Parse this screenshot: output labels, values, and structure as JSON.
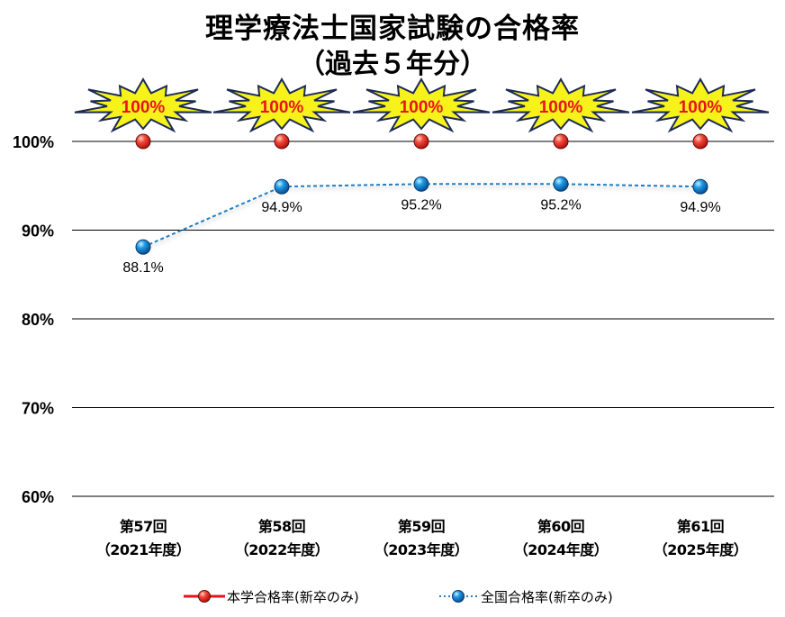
{
  "title": {
    "line1": "理学療法士国家試験の合格率",
    "line2": "（過去５年分）"
  },
  "chart_data": {
    "type": "line",
    "title": "理学療法士国家試験の合格率（過去５年分）",
    "xlabel": "",
    "ylabel": "",
    "categories": [
      [
        "第57回",
        "（2021年度）"
      ],
      [
        "第58回",
        "（2022年度）"
      ],
      [
        "第59回",
        "（2023年度）"
      ],
      [
        "第60回",
        "（2024年度）"
      ],
      [
        "第61回",
        "（2025年度）"
      ]
    ],
    "ylim": [
      60,
      100
    ],
    "yticks": [
      "100%",
      "90%",
      "80%",
      "70%",
      "60%"
    ],
    "ytick_values": [
      100,
      90,
      80,
      70,
      60
    ],
    "grid": true,
    "legend_position": "bottom",
    "series": [
      {
        "name": "本学合格率(新卒のみ)",
        "values": [
          100,
          100,
          100,
          100,
          100
        ],
        "labels": [
          "100%",
          "100%",
          "100%",
          "100%",
          "100%"
        ],
        "label_style": "starburst",
        "line_style": "solid",
        "color": "#e8141b",
        "marker_color": "#f0302a"
      },
      {
        "name": "全国合格率(新卒のみ)",
        "values": [
          88.1,
          94.9,
          95.2,
          95.2,
          94.9
        ],
        "labels": [
          "88.1%",
          "94.9%",
          "95.2%",
          "95.2%",
          "94.9%"
        ],
        "line_style": "dashed",
        "color": "#1f7fc4",
        "marker_color": "#1a8fe0"
      }
    ],
    "annotation_colors": {
      "burst_fill": "#f6f21a",
      "burst_stroke": "#1c2a55",
      "burst_text": "#e8141b"
    }
  }
}
